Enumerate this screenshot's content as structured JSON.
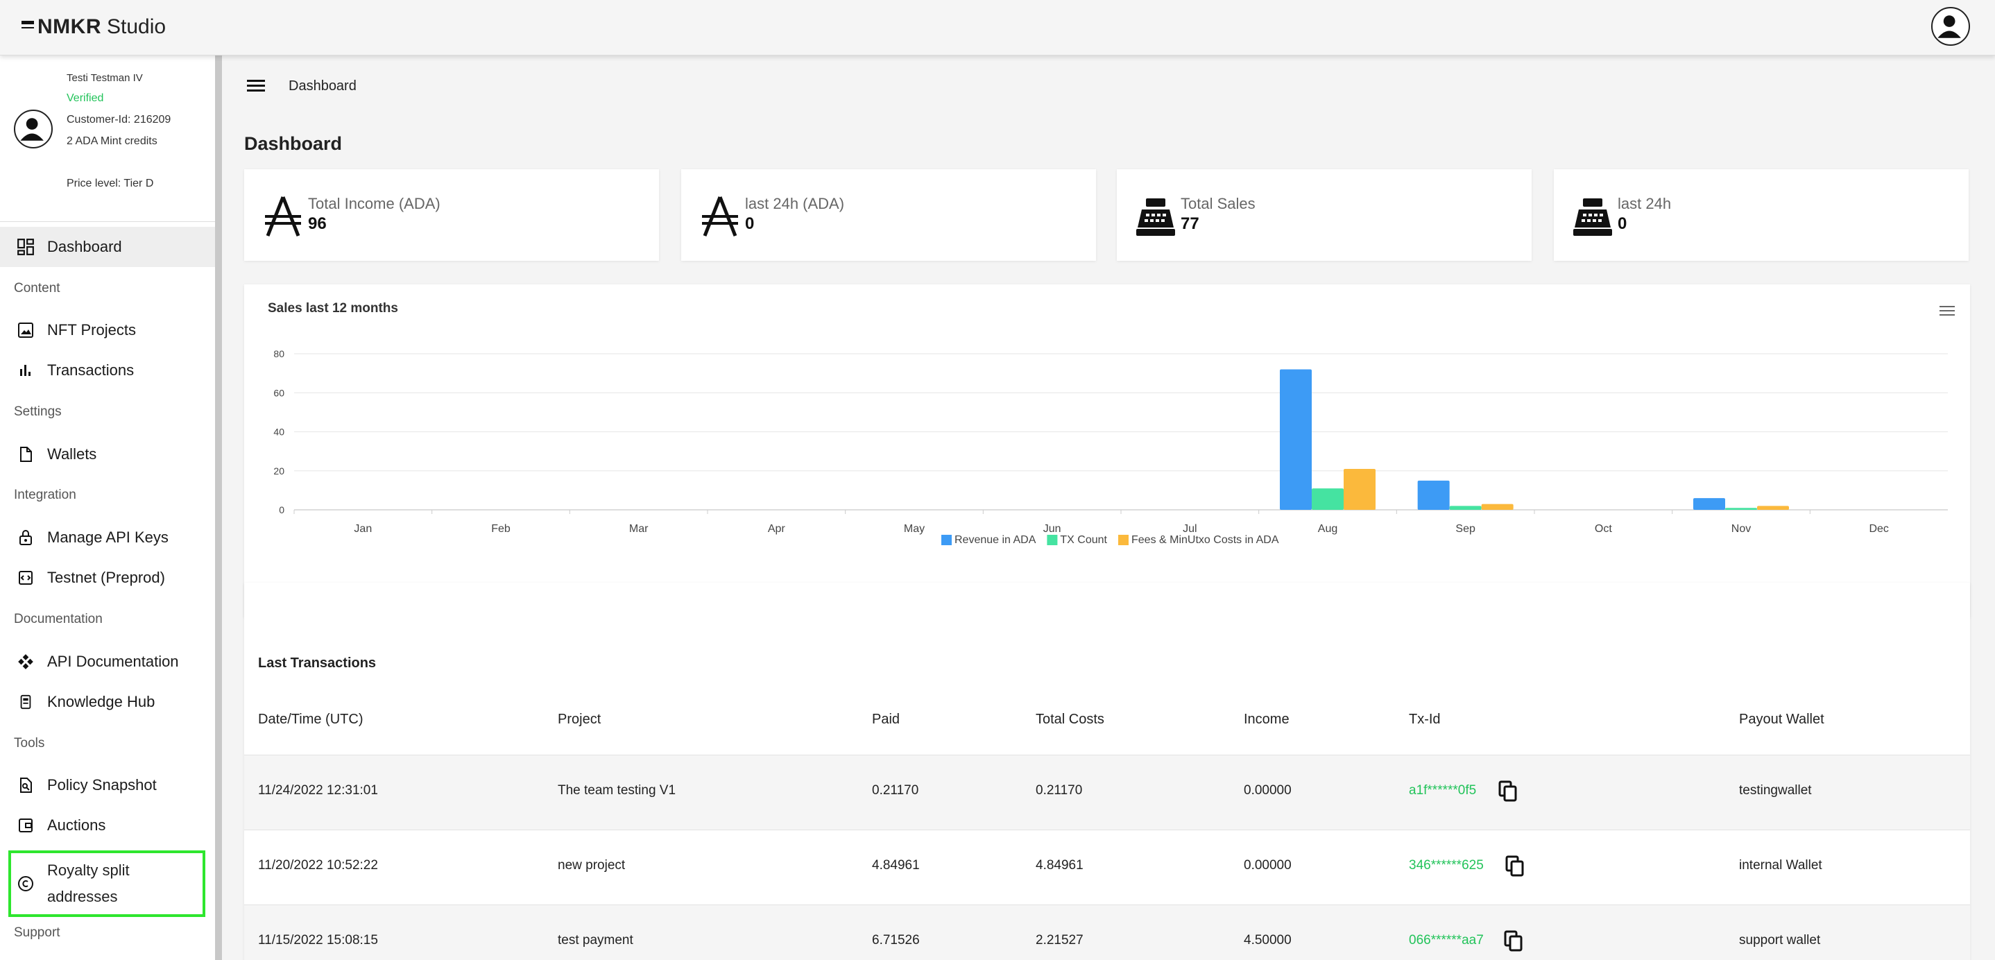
{
  "app": {
    "logo_bold": "NMKR",
    "logo_light": "Studio"
  },
  "profile": {
    "name": "Testi Testman IV",
    "status": "Verified",
    "customer_id": "Customer-Id: 216209",
    "credits": "2 ADA Mint credits",
    "price_level": "Price level: Tier D"
  },
  "nav": {
    "dashboard": "Dashboard",
    "section_content": "Content",
    "nft_projects": "NFT Projects",
    "transactions": "Transactions",
    "section_settings": "Settings",
    "wallets": "Wallets",
    "section_integration": "Integration",
    "api_keys": "Manage API Keys",
    "testnet": "Testnet (Preprod)",
    "section_documentation": "Documentation",
    "api_docs": "API Documentation",
    "knowledge_hub": "Knowledge Hub",
    "section_tools": "Tools",
    "policy_snapshot": "Policy Snapshot",
    "auctions": "Auctions",
    "royalty_line1": "Royalty split",
    "royalty_line2": "addresses",
    "section_support": "Support"
  },
  "header": {
    "breadcrumb": "Dashboard",
    "title": "Dashboard"
  },
  "cards": [
    {
      "label": "Total Income (ADA)",
      "value": "96",
      "icon": "ada-icon"
    },
    {
      "label": "last 24h (ADA)",
      "value": "0",
      "icon": "ada-icon"
    },
    {
      "label": "Total Sales",
      "value": "77",
      "icon": "cash-register-icon"
    },
    {
      "label": "last 24h",
      "value": "0",
      "icon": "cash-register-icon"
    }
  ],
  "chart_data": {
    "type": "bar",
    "title": "Sales last 12 months",
    "categories": [
      "Jan",
      "Feb",
      "Mar",
      "Apr",
      "May",
      "Jun",
      "Jul",
      "Aug",
      "Sep",
      "Oct",
      "Nov",
      "Dec"
    ],
    "series": [
      {
        "name": "Revenue in ADA",
        "color": "#3d9bf5",
        "values": [
          0,
          0,
          0,
          0,
          0,
          0,
          0,
          72,
          15,
          0,
          6,
          0
        ]
      },
      {
        "name": "TX Count",
        "color": "#45e3a1",
        "values": [
          0,
          0,
          0,
          0,
          0,
          0,
          0,
          11,
          2,
          0,
          1,
          0
        ]
      },
      {
        "name": "Fees & MinUtxo Costs in ADA",
        "color": "#fbb93c",
        "values": [
          0,
          0,
          0,
          0,
          0,
          0,
          0,
          21,
          3,
          0,
          2,
          0
        ]
      }
    ],
    "yticks": [
      0,
      20,
      40,
      60,
      80
    ],
    "ylim": [
      0,
      80
    ],
    "legend_position": "bottom",
    "grid": true
  },
  "transactions": {
    "title": "Last Transactions",
    "columns": [
      "Date/Time (UTC)",
      "Project",
      "Paid",
      "Total Costs",
      "Income",
      "Tx-Id",
      "Payout Wallet"
    ],
    "rows": [
      {
        "date": "11/24/2022 12:31:01",
        "project": "The team testing V1",
        "paid": "0.21170",
        "costs": "0.21170",
        "income": "0.00000",
        "txid": "a1f******0f5",
        "wallet": "testingwallet"
      },
      {
        "date": "11/20/2022 10:52:22",
        "project": "new project",
        "paid": "4.84961",
        "costs": "4.84961",
        "income": "0.00000",
        "txid": "346******625",
        "wallet": "internal Wallet"
      },
      {
        "date": "11/15/2022 15:08:15",
        "project": "test payment",
        "paid": "6.71526",
        "costs": "2.21527",
        "income": "4.50000",
        "txid": "066******aa7",
        "wallet": "support wallet"
      }
    ]
  }
}
